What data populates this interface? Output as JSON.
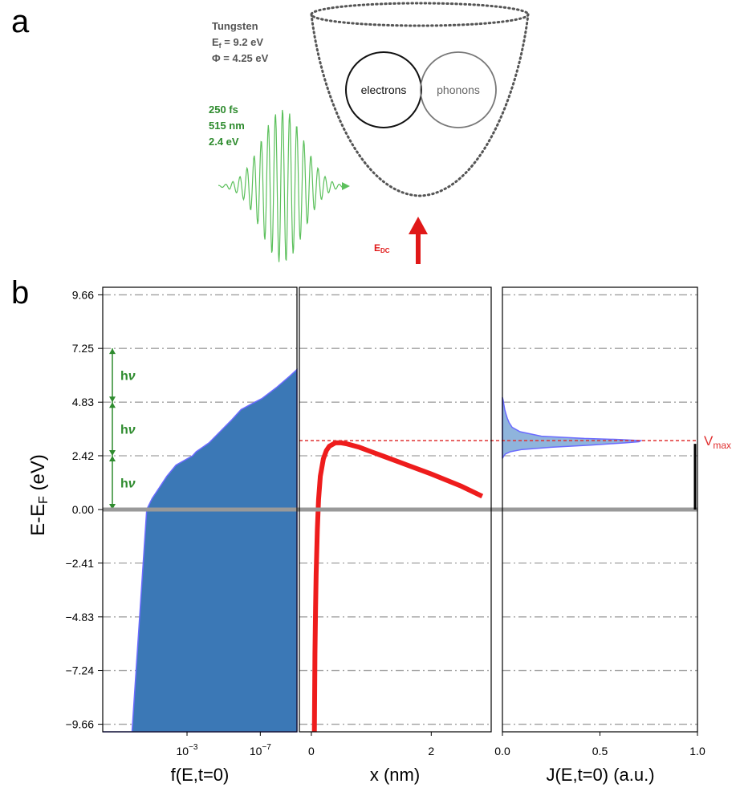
{
  "panel_a": {
    "label": "a",
    "material": {
      "name": "Tungsten",
      "fermi_sym": "E",
      "fermi_sub": "f",
      "fermi_val": " = 9.2 eV",
      "work_function": "Φ = 4.25 eV"
    },
    "pulse": {
      "duration": "250 fs",
      "wavelength": "515 nm",
      "energy": "2.4 eV"
    },
    "electrons_label": "electrons",
    "phonons_label": "phonons",
    "field_sym": "E",
    "field_sub": "DC",
    "colors": {
      "green": "#2e8b2e",
      "pulse_wave": "#5cc05c",
      "red": "#e01818",
      "gray_text": "#555555"
    }
  },
  "panel_b": {
    "label": "b",
    "ylabel_main": "E-E",
    "ylabel_sub": "F",
    "ylabel_unit": " (eV)",
    "colors": {
      "fill_dark": "#3b78b6",
      "fill_edge": "#6b6bff",
      "fill_light": "#8fb4dc",
      "barrier": "#ee1c1c",
      "vmax_line": "#e03030",
      "fermi_line": "#999999",
      "grid": "#a0a0a0"
    }
  },
  "chart_data": [
    {
      "type": "area",
      "panel": "b-left",
      "xlabel": "f(E,t=0)",
      "x_scale": "log (decreasing to the right)",
      "x_ticks": [
        {
          "base": "10",
          "exp": "−3"
        },
        {
          "base": "10",
          "exp": "−7"
        }
      ],
      "ylabel": "E-EF (eV)",
      "yticks": [
        "9.66",
        "7.25",
        "4.83",
        "2.42",
        "0.00",
        "−2.41",
        "−4.83",
        "−7.24",
        "−9.66"
      ],
      "ytick_values": [
        9.66,
        7.25,
        4.83,
        2.42,
        0.0,
        -2.41,
        -4.83,
        -7.24,
        -9.66
      ],
      "ylim": [
        -10.0,
        10.0
      ],
      "grid": "horizontal dash-dot",
      "distribution": {
        "E": [
          -10.0,
          0.0,
          0.5,
          1.0,
          1.5,
          2.0,
          2.42,
          2.6,
          3.0,
          3.5,
          4.0,
          4.5,
          4.83,
          5.0,
          5.5,
          6.0,
          6.3
        ],
        "log10_f": [
          0.0,
          -0.8,
          -1.1,
          -1.5,
          -1.9,
          -2.4,
          -3.3,
          -3.5,
          -4.2,
          -4.8,
          -5.4,
          -5.95,
          -6.7,
          -7.1,
          -7.9,
          -8.6,
          -9.0
        ]
      },
      "photon_energy_markers": {
        "label_h": "h",
        "label_nu": "ν",
        "levels_eV": [
          0.0,
          2.42,
          4.83,
          7.25
        ]
      }
    },
    {
      "type": "line",
      "panel": "b-middle",
      "xlabel": "x (nm)",
      "xticks": [
        "0",
        "2"
      ],
      "xtick_values": [
        0,
        2
      ],
      "xlim": [
        -0.2,
        3.0
      ],
      "ylim": [
        -10.0,
        10.0
      ],
      "grid": "horizontal dash-dot",
      "series": [
        {
          "x": [
            0.05,
            0.06,
            0.07,
            0.08,
            0.1,
            0.12,
            0.15,
            0.2,
            0.25,
            0.3,
            0.4,
            0.5,
            0.6,
            0.8,
            1.0,
            1.2,
            1.5,
            2.0,
            2.5,
            2.85
          ],
          "y": [
            -10.0,
            -6.5,
            -4.4,
            -2.9,
            -0.9,
            0.45,
            1.5,
            2.28,
            2.65,
            2.85,
            3.0,
            3.0,
            2.95,
            2.8,
            2.6,
            2.4,
            2.1,
            1.6,
            1.05,
            0.6
          ]
        }
      ],
      "vmax_eV": 3.1
    },
    {
      "type": "area",
      "panel": "b-right",
      "xlabel": "J(E,t=0) (a.u.)",
      "xticks": [
        "0.0",
        "0.5",
        "1.0"
      ],
      "xtick_values": [
        0.0,
        0.5,
        1.0
      ],
      "xlim": [
        0.0,
        1.0
      ],
      "ylim": [
        -10.0,
        10.0
      ],
      "grid": "horizontal dash-dot",
      "series": [
        {
          "E": [
            2.3,
            2.4,
            2.5,
            2.6,
            2.7,
            2.8,
            2.9,
            3.0,
            3.05,
            3.1,
            3.15,
            3.2,
            3.3,
            3.5,
            3.7,
            3.9,
            4.1,
            4.3,
            4.5,
            4.7,
            4.9,
            5.05
          ],
          "J": [
            0.0,
            0.006,
            0.015,
            0.04,
            0.1,
            0.25,
            0.45,
            0.63,
            0.7,
            0.71,
            0.6,
            0.42,
            0.2,
            0.09,
            0.05,
            0.035,
            0.025,
            0.018,
            0.012,
            0.008,
            0.004,
            0.0
          ]
        }
      ],
      "vmax_label_main": "V",
      "vmax_label_sub": "max",
      "vmax_eV": 3.1
    }
  ]
}
